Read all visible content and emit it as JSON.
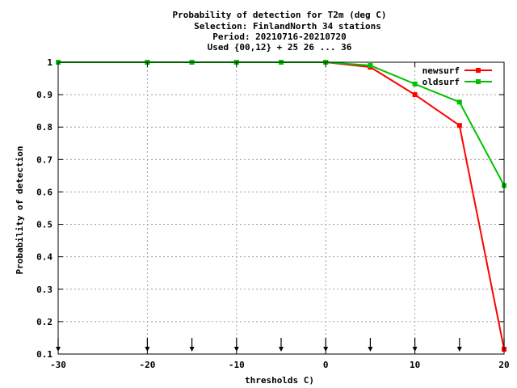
{
  "chart_data": {
    "type": "line",
    "title_lines": [
      "Probability of detection  for T2m (deg C)",
      "Selection: FinlandNorth     34 stations",
      "Period: 20210716-20210720",
      "Used {00,12} + 25 26 ... 36"
    ],
    "xlabel": "thresholds C)",
    "ylabel": "Probability of detection",
    "xlim": [
      -30,
      20
    ],
    "ylim": [
      0.1,
      1.0
    ],
    "x_ticks": [
      -30,
      -20,
      -10,
      0,
      10,
      20
    ],
    "y_ticks": [
      0.1,
      0.2,
      0.3,
      0.4,
      0.5,
      0.6,
      0.7,
      0.8,
      0.9,
      1
    ],
    "grid": true,
    "legend_position": "top-right",
    "x": [
      -30,
      -20,
      -15,
      -10,
      -5,
      0,
      5,
      10,
      15,
      20
    ],
    "series": [
      {
        "name": "newsurf",
        "color": "#ff0000",
        "values": [
          1.0,
          1.0,
          1.0,
          1.0,
          1.0,
          1.0,
          0.985,
          0.9,
          0.805,
          0.115
        ]
      },
      {
        "name": "oldsurf",
        "color": "#00c000",
        "values": [
          1.0,
          1.0,
          1.0,
          1.0,
          1.0,
          1.0,
          0.99,
          0.933,
          0.877,
          0.62
        ]
      }
    ],
    "threshold_markers": [
      -30,
      -20,
      -15,
      -10,
      -5,
      0,
      5,
      10,
      15,
      20
    ]
  }
}
